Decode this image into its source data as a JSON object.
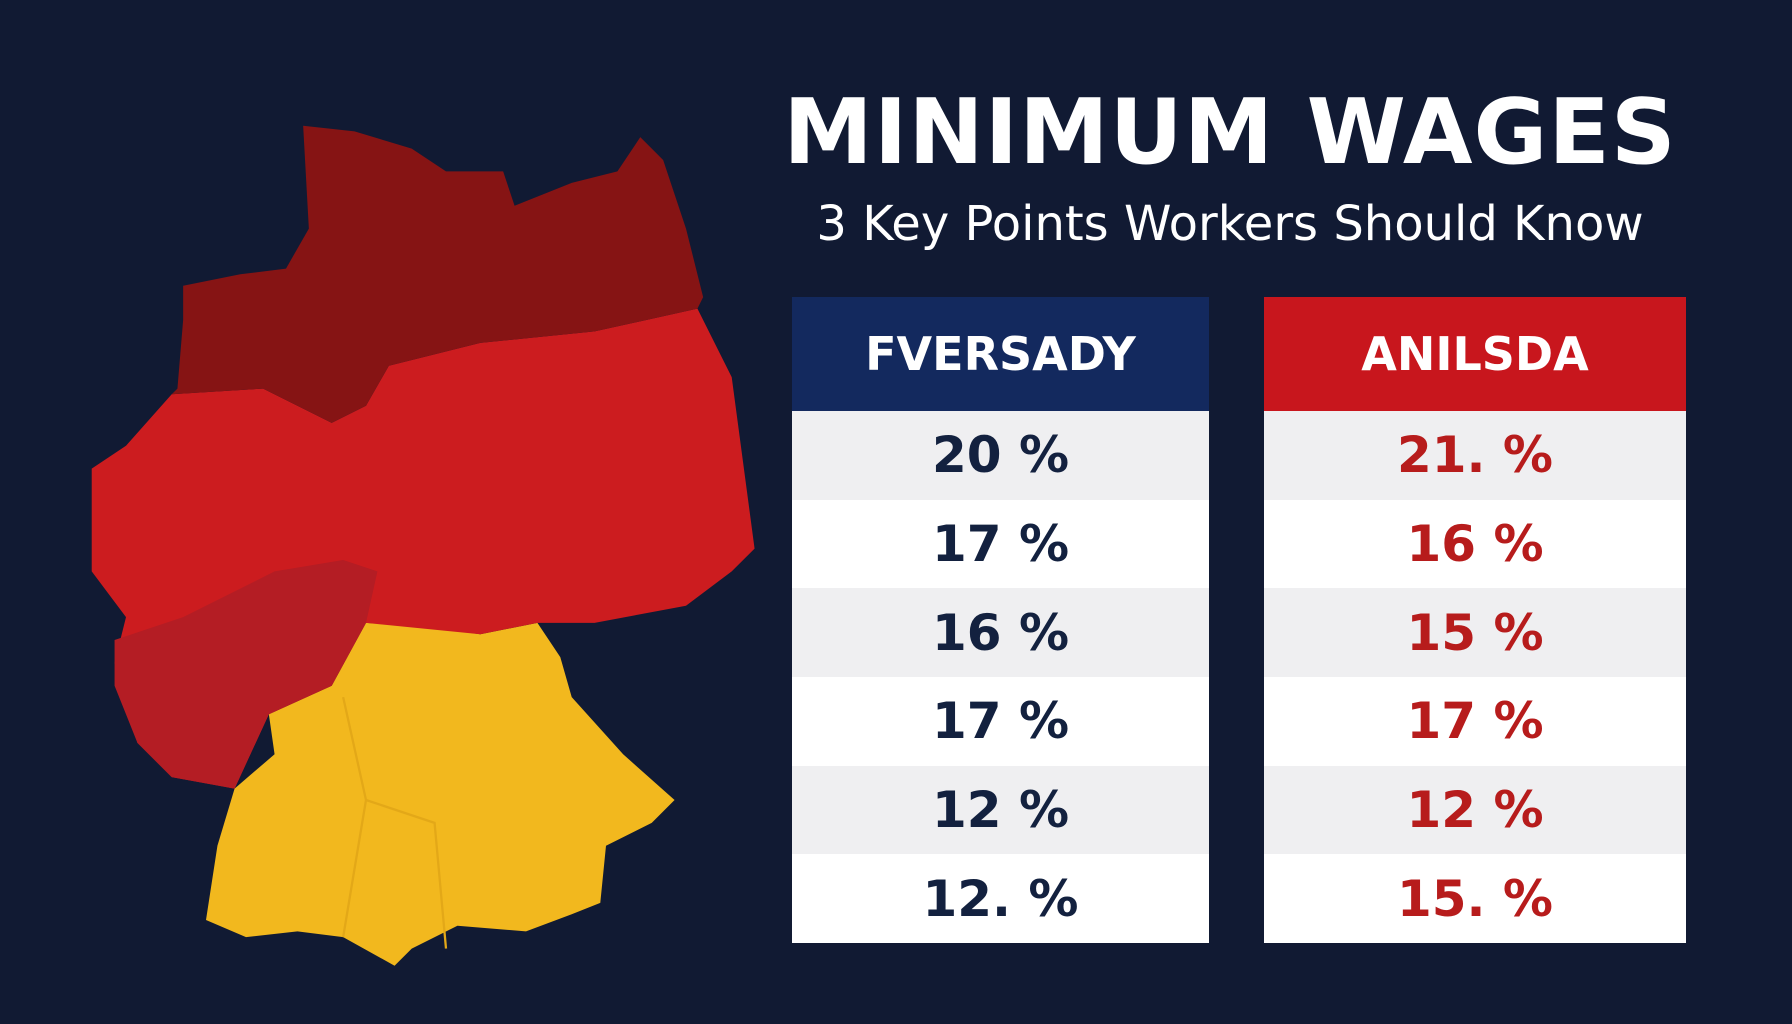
{
  "header": {
    "title": "MINIMUM WAGES",
    "subtitle": "3 Key Points Workers Should Know"
  },
  "tables": [
    {
      "header": "FVERSADY",
      "rows": [
        "20 %",
        "17 %",
        "16 %",
        "17 %",
        "12 %",
        "12. %"
      ]
    },
    {
      "header": "ANILSDA",
      "rows": [
        "21. %",
        "16 %",
        "15 %",
        "17 %",
        "12 %",
        "15. %"
      ]
    }
  ]
}
